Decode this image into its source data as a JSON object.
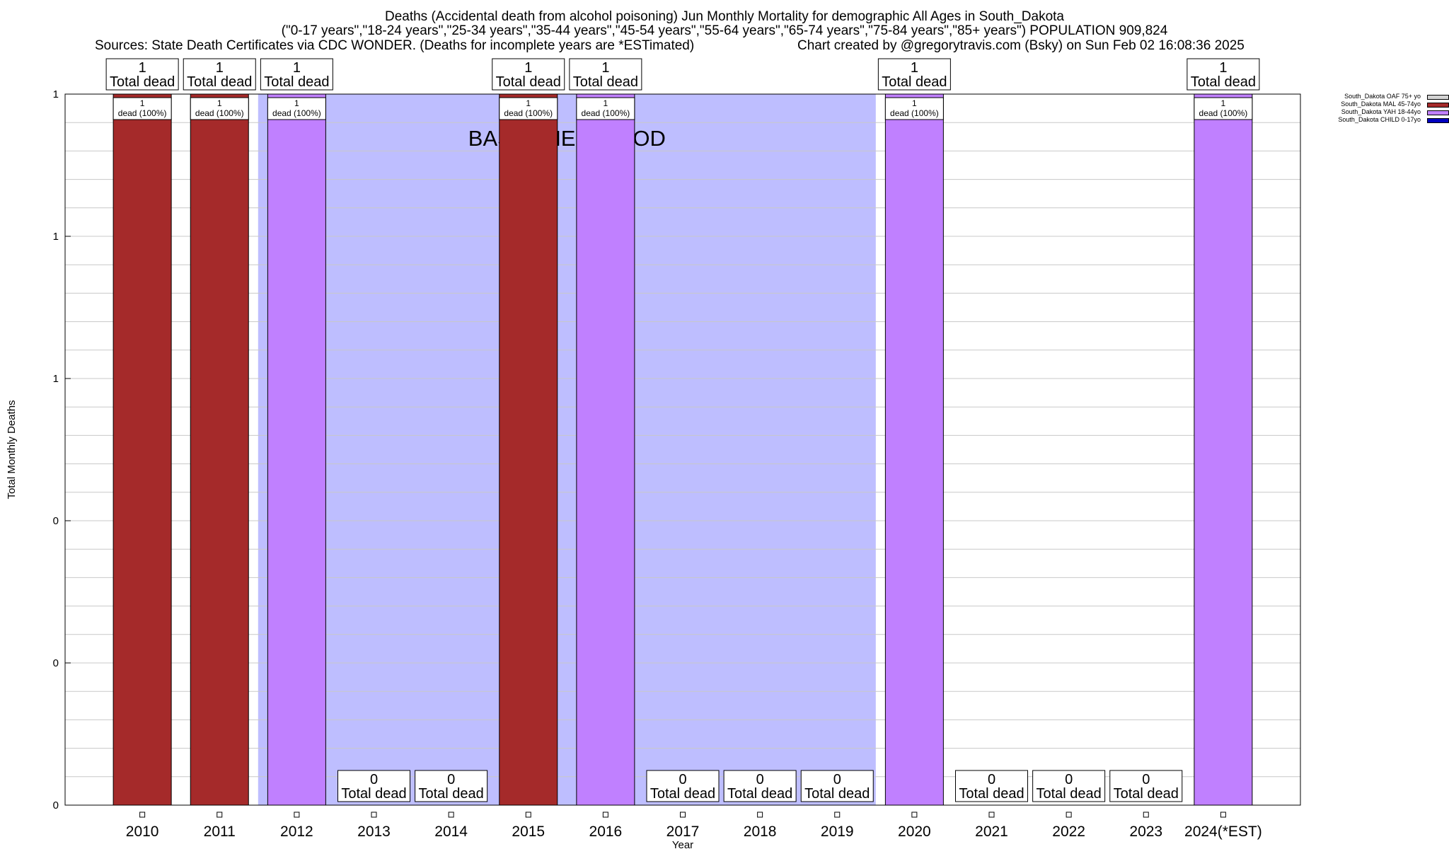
{
  "header": {
    "title": "Deaths (Accidental death from alcohol poisoning) Jun Monthly Mortality for demographic All Ages in South_Dakota",
    "subtitle": "(\"0-17 years\",\"18-24 years\",\"25-34 years\",\"35-44 years\",\"45-54 years\",\"55-64 years\",\"65-74 years\",\"75-84 years\",\"85+ years\") POPULATION 909,824",
    "sources": "Sources: State Death Certificates via CDC WONDER. (Deaths for incomplete years are *ESTimated)",
    "credit": "Chart created by @gregorytravis.com (Bsky) on Sun Feb 02 16:08:36 2025"
  },
  "legend": {
    "items": [
      {
        "label": "South_Dakota OAF 75+ yo",
        "color": "#d3d3d3"
      },
      {
        "label": "South_Dakota MAL 45-74yo",
        "color": "#a52a2a"
      },
      {
        "label": "South_Dakota YAH 18-44yo",
        "color": "#c080ff"
      },
      {
        "label": "South_Dakota CHILD 0-17yo",
        "color": "#0000c0"
      }
    ]
  },
  "chart_data": {
    "type": "bar",
    "stacked": true,
    "xlabel": "Year",
    "ylabel": "Total Monthly Deaths",
    "categories": [
      "2010",
      "2011",
      "2012",
      "2013",
      "2014",
      "2015",
      "2016",
      "2017",
      "2018",
      "2019",
      "2020",
      "2021",
      "2022",
      "2023",
      "2024(*EST)"
    ],
    "ylim": [
      0,
      1
    ],
    "y_ticks": [
      {
        "value": 0,
        "label": "0"
      },
      {
        "value": 0.2,
        "label": "0"
      },
      {
        "value": 0.4,
        "label": "0"
      },
      {
        "value": 0.6,
        "label": "1"
      },
      {
        "value": 0.8,
        "label": "1"
      },
      {
        "value": 1.0,
        "label": "1"
      }
    ],
    "grid": true,
    "legend_position": "top-right",
    "baseline": {
      "label": "BASELINE PERIOD",
      "from": "2012",
      "to": "2019",
      "color": "#bebeff"
    },
    "series": [
      {
        "name": "South_Dakota OAF 75+ yo",
        "color": "#d3d3d3",
        "values": [
          0,
          0,
          0,
          0,
          0,
          0,
          0,
          0,
          0,
          0,
          0,
          0,
          0,
          0,
          0
        ]
      },
      {
        "name": "South_Dakota MAL 45-74yo",
        "color": "#a52a2a",
        "values": [
          1,
          1,
          0,
          0,
          0,
          1,
          0,
          0,
          0,
          0,
          0,
          0,
          0,
          0,
          0
        ]
      },
      {
        "name": "South_Dakota YAH 18-44yo",
        "color": "#c080ff",
        "values": [
          0,
          0,
          1,
          0,
          0,
          0,
          1,
          0,
          0,
          0,
          1,
          0,
          0,
          0,
          1
        ]
      },
      {
        "name": "South_Dakota CHILD 0-17yo",
        "color": "#0000c0",
        "values": [
          0,
          0,
          0,
          0,
          0,
          0,
          0,
          0,
          0,
          0,
          0,
          0,
          0,
          0,
          0
        ]
      }
    ],
    "totals": [
      1,
      1,
      1,
      0,
      0,
      1,
      1,
      0,
      0,
      0,
      1,
      0,
      0,
      0,
      1
    ],
    "total_label": "Total dead",
    "segment_labels": [
      "dead (100%)",
      "dead (100%)",
      "dead (100%)",
      "",
      "",
      "dead (100%)",
      "dead (100%)",
      "",
      "",
      "",
      "dead (100%)",
      "",
      "",
      "",
      "dead (100%)"
    ]
  }
}
